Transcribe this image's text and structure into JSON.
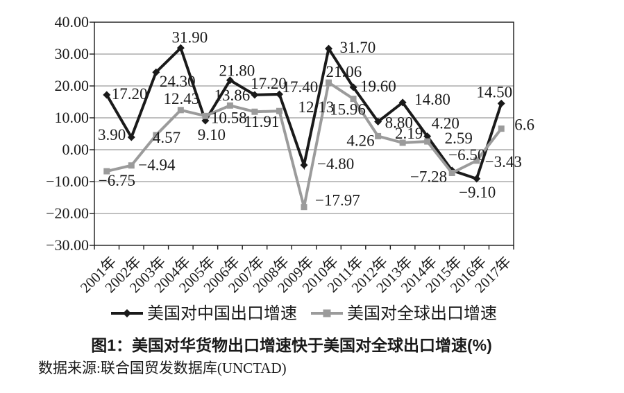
{
  "figure": {
    "caption": "图1：美国对华货物出口增速快于美国对全球出口增速(%)",
    "source": "数据来源:联合国贸发数据库(UNCTAD)"
  },
  "chart_data": {
    "type": "line",
    "title": "图1：美国对华货物出口增速快于美国对全球出口增速(%)",
    "xlabel": "",
    "ylabel": "",
    "ylim": [
      -30,
      40
    ],
    "grid": true,
    "legend_position": "bottom",
    "categories": [
      "2001年",
      "2002年",
      "2003年",
      "2004年",
      "2005年",
      "2006年",
      "2007年",
      "2008年",
      "2009年",
      "2010年",
      "2011年",
      "2012年",
      "2013年",
      "2014年",
      "2015年",
      "2016年",
      "2017年"
    ],
    "y_ticks": [
      {
        "value": 40,
        "label": "40.00"
      },
      {
        "value": 30,
        "label": "30.00"
      },
      {
        "value": 20,
        "label": "20.00"
      },
      {
        "value": 10,
        "label": "10.00"
      },
      {
        "value": 0,
        "label": "0.00"
      },
      {
        "value": -10,
        "label": "−10.00"
      },
      {
        "value": -20,
        "label": "−20.00"
      },
      {
        "value": -30,
        "label": "−30.00"
      }
    ],
    "series": [
      {
        "name": "美国对中国出口增速",
        "color": "#1a1a1a",
        "marker": "diamond",
        "values": [
          17.2,
          3.9,
          24.3,
          31.9,
          9.1,
          21.8,
          17.2,
          17.4,
          -4.8,
          31.7,
          19.6,
          8.8,
          14.8,
          4.2,
          -6.5,
          -9.1,
          14.5
        ],
        "point_labels": [
          {
            "text": "17.20",
            "anchor": "start",
            "dx": 7,
            "dy": 6
          },
          {
            "text": "3.90",
            "anchor": "end",
            "dx": -8,
            "dy": 4
          },
          {
            "text": "24.30",
            "anchor": "start",
            "dx": 5,
            "dy": 21
          },
          {
            "text": "31.90",
            "anchor": "middle",
            "dx": 13,
            "dy": -8
          },
          {
            "text": "9.10",
            "anchor": "middle",
            "dx": 9,
            "dy": 28
          },
          {
            "text": "21.80",
            "anchor": "middle",
            "dx": 10,
            "dy": -6
          },
          {
            "text": "17.20",
            "anchor": "middle",
            "dx": 20,
            "dy": -9
          },
          {
            "text": "17.40",
            "anchor": "start",
            "dx": 4,
            "dy": -3
          },
          {
            "text": "−4.80",
            "anchor": "start",
            "dx": 19,
            "dy": 6
          },
          {
            "text": "31.70",
            "anchor": "start",
            "dx": 16,
            "dy": 6
          },
          {
            "text": "19.60",
            "anchor": "start",
            "dx": 10,
            "dy": 6
          },
          {
            "text": "8.80",
            "anchor": "start",
            "dx": 10,
            "dy": 9
          },
          {
            "text": "14.80",
            "anchor": "start",
            "dx": 17,
            "dy": 3
          },
          {
            "text": "4.20",
            "anchor": "start",
            "dx": 6,
            "dy": -11
          },
          {
            "text": "−6.50",
            "anchor": "start",
            "dx": -5,
            "dy": -15
          },
          {
            "text": "−9.10",
            "anchor": "middle",
            "dx": 1,
            "dy": 27
          },
          {
            "text": "14.50",
            "anchor": "middle",
            "dx": -10,
            "dy": -9
          }
        ]
      },
      {
        "name": "美国对全球出口增速",
        "color": "#9b9b9b",
        "marker": "square",
        "values": [
          -6.75,
          -4.94,
          4.57,
          12.43,
          10.58,
          13.86,
          11.91,
          12.13,
          -17.97,
          21.06,
          15.96,
          4.26,
          2.19,
          2.59,
          -7.28,
          -3.43,
          6.6
        ],
        "point_labels": [
          {
            "text": "−6.75",
            "anchor": "start",
            "dx": -12,
            "dy": 21
          },
          {
            "text": "−4.94",
            "anchor": "start",
            "dx": 10,
            "dy": 7
          },
          {
            "text": "4.57",
            "anchor": "start",
            "dx": -5,
            "dy": 11
          },
          {
            "text": "12.43",
            "anchor": "middle",
            "dx": 1,
            "dy": -9
          },
          {
            "text": "10.58",
            "anchor": "start",
            "dx": 8,
            "dy": 10
          },
          {
            "text": "13.86",
            "anchor": "middle",
            "dx": 3,
            "dy": -7
          },
          {
            "text": "11.91",
            "anchor": "middle",
            "dx": 10,
            "dy": 22
          },
          {
            "text": "12.13",
            "anchor": "start",
            "dx": 27,
            "dy": 2
          },
          {
            "text": "−17.97",
            "anchor": "start",
            "dx": 16,
            "dy": -2
          },
          {
            "text": "21.06",
            "anchor": "start",
            "dx": -4,
            "dy": -8
          },
          {
            "text": "15.96",
            "anchor": "middle",
            "dx": -8,
            "dy": 23
          },
          {
            "text": "4.26",
            "anchor": "end",
            "dx": -5,
            "dy": 14
          },
          {
            "text": "2.19",
            "anchor": "middle",
            "dx": 9,
            "dy": -6
          },
          {
            "text": "2.59",
            "anchor": "start",
            "dx": 25,
            "dy": 3
          },
          {
            "text": "−7.28",
            "anchor": "end",
            "dx": -7,
            "dy": 13
          },
          {
            "text": "−3.43",
            "anchor": "start",
            "dx": 12,
            "dy": 9
          },
          {
            "text": "6.6",
            "anchor": "start",
            "dx": 19,
            "dy": 2
          }
        ]
      }
    ]
  }
}
